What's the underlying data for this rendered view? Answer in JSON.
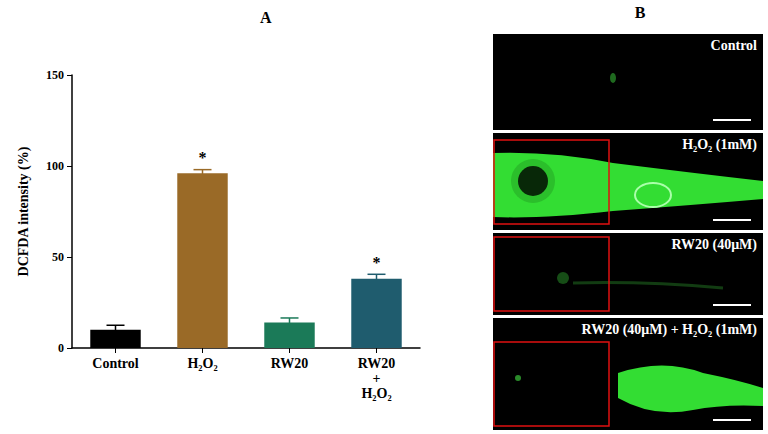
{
  "chart_data": {
    "type": "bar",
    "title": "A",
    "categories": [
      "Control",
      "H₂O₂",
      "RW20",
      "RW20\n+\nH₂O₂"
    ],
    "values": [
      10,
      96,
      14,
      38
    ],
    "errors": [
      2.5,
      2,
      2.5,
      2.5
    ],
    "colors": [
      "#000000",
      "#9a6a27",
      "#1b7a58",
      "#1f5c6e"
    ],
    "y_label": "DCFDA intensity (%)",
    "ylim": [
      0,
      150
    ],
    "yticks": [
      0,
      50,
      100,
      150
    ],
    "grid": false,
    "annotations": [
      {
        "category": "H₂O₂",
        "text": "*"
      },
      {
        "category": "RW20\n+\nH₂O₂",
        "text": "*"
      }
    ]
  },
  "image_panel": {
    "title": "B",
    "labels": [
      "Control",
      "H₂O₂ (1mM)",
      "RW20 (40μM)",
      "RW20 (40μM) + H₂O₂ (1mM)"
    ]
  }
}
